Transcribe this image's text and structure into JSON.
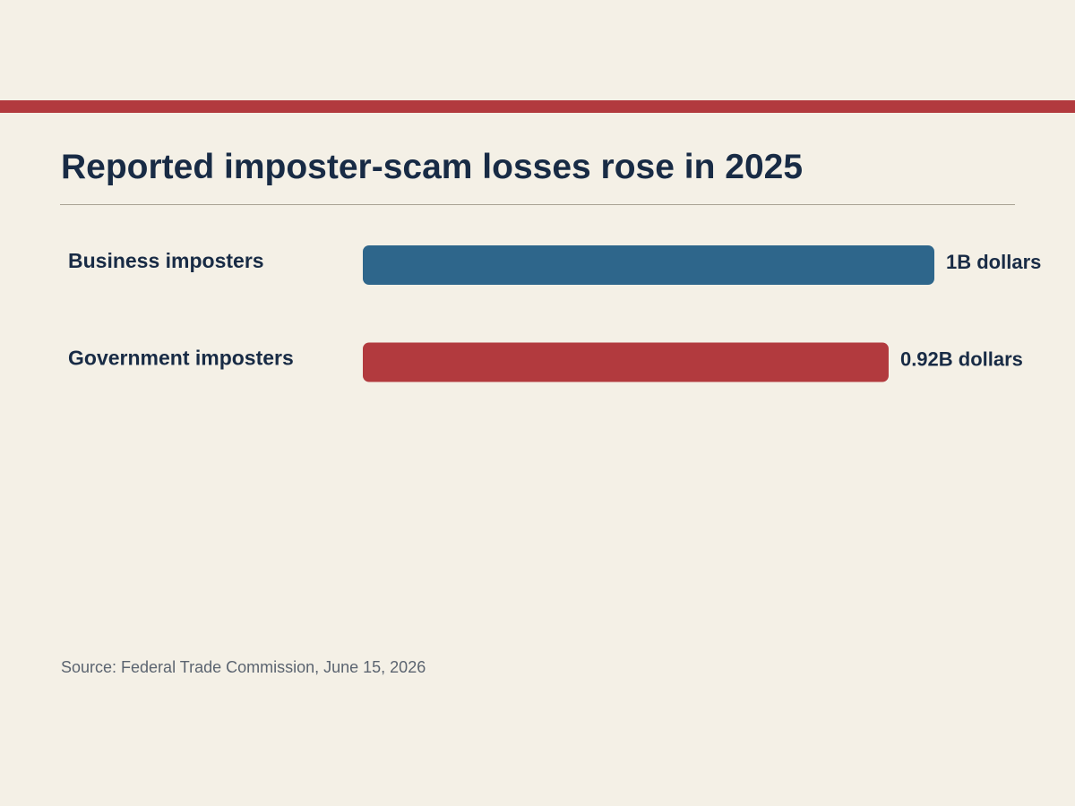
{
  "colors": {
    "background": "#f4f0e6",
    "accent_stripe": "#b23a3e",
    "title_text": "#182b45",
    "source_text": "#5b6470"
  },
  "title": "Reported imposter-scam losses rose in 2025",
  "source": "Source: Federal Trade Commission, June 15, 2026",
  "chart_data": {
    "type": "bar",
    "orientation": "horizontal",
    "title": "Reported imposter-scam losses rose in 2025",
    "categories": [
      "Business imposters",
      "Government imposters"
    ],
    "values": [
      1,
      0.92
    ],
    "value_labels": [
      "1B dollars",
      "0.92B dollars"
    ],
    "colors": [
      "#2e668b",
      "#b23a3e"
    ],
    "xlim": [
      0,
      1
    ],
    "grid": false,
    "legend": "none"
  }
}
